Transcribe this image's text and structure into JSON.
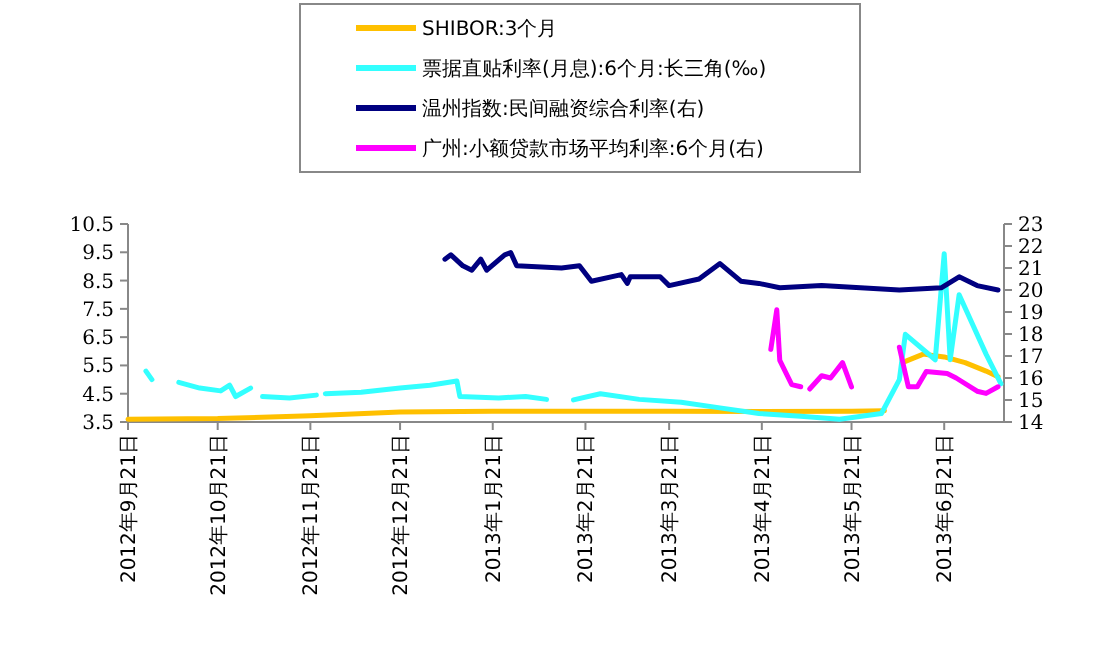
{
  "chart_data": {
    "type": "line",
    "legend": "top",
    "grid": false,
    "line_style": "solid",
    "marker": "none",
    "xlim": [
      "2012-09-21",
      "2013-07-11"
    ],
    "xticks": [
      {
        "value": "2012-09-21",
        "label": "2012年9月21日"
      },
      {
        "value": "2012-10-21",
        "label": "2012年10月21日"
      },
      {
        "value": "2012-11-21",
        "label": "2012年11月21日"
      },
      {
        "value": "2012-12-21",
        "label": "2012年12月21日"
      },
      {
        "value": "2013-01-21",
        "label": "2013年1月21日"
      },
      {
        "value": "2013-02-21",
        "label": "2013年2月21日"
      },
      {
        "value": "2013-03-21",
        "label": "2013年3月21日"
      },
      {
        "value": "2013-04-21",
        "label": "2013年4月21日"
      },
      {
        "value": "2013-05-21",
        "label": "2013年5月21日"
      },
      {
        "value": "2013-06-21",
        "label": "2013年6月21日"
      }
    ],
    "ylim": [
      3.5,
      10.5
    ],
    "yticks": [
      {
        "value": 3.5,
        "label": "3.5"
      },
      {
        "value": 4.5,
        "label": "4.5"
      },
      {
        "value": 5.5,
        "label": "5.5"
      },
      {
        "value": 6.5,
        "label": "6.5"
      },
      {
        "value": 7.5,
        "label": "7.5"
      },
      {
        "value": 8.5,
        "label": "8.5"
      },
      {
        "value": 9.5,
        "label": "9.5"
      },
      {
        "value": 10.5,
        "label": "10.5"
      }
    ],
    "y2lim": [
      14,
      23
    ],
    "y2ticks": [
      14,
      15,
      16,
      17,
      18,
      19,
      20,
      21,
      22,
      23
    ],
    "series": [
      {
        "name": "SHIBOR:3个月",
        "color": "#ffc000",
        "x": [
          "2012-09-21",
          "2012-10-21",
          "2012-11-21",
          "2012-12-21",
          "2013-01-21",
          "2013-02-21",
          "2013-03-21",
          "2013-04-21",
          "2013-05-21",
          "2013-06-01",
          "2013-06-04",
          "2013-06-07",
          "2013-06-14",
          "2013-06-21",
          "2013-06-28",
          "2013-07-05",
          "2013-07-09"
        ],
        "values": [
          3.6,
          3.62,
          3.72,
          3.85,
          3.88,
          3.88,
          3.88,
          3.87,
          3.88,
          3.9,
          null,
          5.6,
          5.9,
          5.8,
          5.6,
          5.3,
          5.1
        ]
      },
      {
        "name": "票据直贴利率(月息):6个月:长三角(‰)",
        "color": "#33ffff",
        "x": [
          "2012-09-27",
          "2012-09-29",
          "2012-10-03",
          "2012-10-08",
          "2012-10-15",
          "2012-10-22",
          "2012-10-25",
          "2012-10-27",
          "2012-11-01",
          "2012-11-03",
          "2012-11-05",
          "2012-11-14",
          "2012-11-23",
          "2012-11-25",
          "2012-11-26",
          "2012-12-08",
          "2012-12-21",
          "2012-12-31",
          "2013-01-09",
          "2013-01-10",
          "2013-01-23",
          "2013-02-01",
          "2013-02-08",
          "2013-02-12",
          "2013-02-17",
          "2013-02-26",
          "2013-03-11",
          "2013-03-25",
          "2013-04-07",
          "2013-04-20",
          "2013-05-04",
          "2013-05-17",
          "2013-05-31",
          "2013-06-06",
          "2013-06-08",
          "2013-06-18",
          "2013-06-21",
          "2013-06-23",
          "2013-06-26",
          "2013-07-05",
          "2013-07-10"
        ],
        "values": [
          5.3,
          5.0,
          null,
          4.9,
          4.7,
          4.6,
          4.8,
          4.4,
          4.7,
          null,
          4.4,
          4.35,
          4.45,
          null,
          4.5,
          4.55,
          4.7,
          4.8,
          4.95,
          4.4,
          4.35,
          4.4,
          4.3,
          null,
          4.28,
          4.5,
          4.3,
          4.2,
          4.0,
          3.8,
          3.7,
          3.6,
          3.8,
          5.0,
          6.6,
          5.7,
          9.45,
          5.7,
          8.0,
          5.9,
          4.85
        ]
      },
      {
        "name": "温州指数:民间融资综合利率(右)",
        "color": "#000080",
        "axis": "y2",
        "x": [
          "2013-01-05",
          "2013-01-07",
          "2013-01-11",
          "2013-01-14",
          "2013-01-17",
          "2013-01-19",
          "2013-01-25",
          "2013-01-27",
          "2013-01-29",
          "2013-02-13",
          "2013-02-19",
          "2013-02-23",
          "2013-03-05",
          "2013-03-07",
          "2013-03-08",
          "2013-03-18",
          "2013-03-21",
          "2013-03-31",
          "2013-04-07",
          "2013-04-14",
          "2013-04-20",
          "2013-04-27",
          "2013-05-11",
          "2013-05-24",
          "2013-06-06",
          "2013-06-20",
          "2013-06-26",
          "2013-07-02",
          "2013-07-09"
        ],
        "values": [
          21.4,
          21.6,
          21.1,
          20.9,
          21.4,
          20.9,
          21.6,
          21.7,
          21.1,
          21.0,
          21.1,
          20.4,
          20.7,
          20.3,
          20.6,
          20.6,
          20.2,
          20.5,
          21.2,
          20.4,
          20.3,
          20.1,
          20.2,
          20.1,
          20.0,
          20.1,
          20.6,
          20.2,
          20.0
        ]
      },
      {
        "name": "广州:小额贷款市场平均利率:6个月(右)",
        "color": "#ff00ff",
        "axis": "y2",
        "x": [
          "2013-04-24",
          "2013-04-26",
          "2013-04-27",
          "2013-05-01",
          "2013-05-04",
          "2013-05-05",
          "2013-05-07",
          "2013-05-11",
          "2013-05-14",
          "2013-05-18",
          "2013-05-21",
          "2013-05-25",
          "2013-06-06",
          "2013-06-09",
          "2013-06-12",
          "2013-06-15",
          "2013-06-22",
          "2013-06-25",
          "2013-07-02",
          "2013-07-05",
          "2013-07-09"
        ],
        "values": [
          17.3,
          19.1,
          16.8,
          15.7,
          15.6,
          null,
          15.5,
          16.1,
          16.0,
          16.7,
          15.6,
          null,
          17.4,
          15.6,
          15.6,
          16.3,
          16.2,
          16.0,
          15.4,
          15.3,
          15.6
        ]
      }
    ]
  }
}
